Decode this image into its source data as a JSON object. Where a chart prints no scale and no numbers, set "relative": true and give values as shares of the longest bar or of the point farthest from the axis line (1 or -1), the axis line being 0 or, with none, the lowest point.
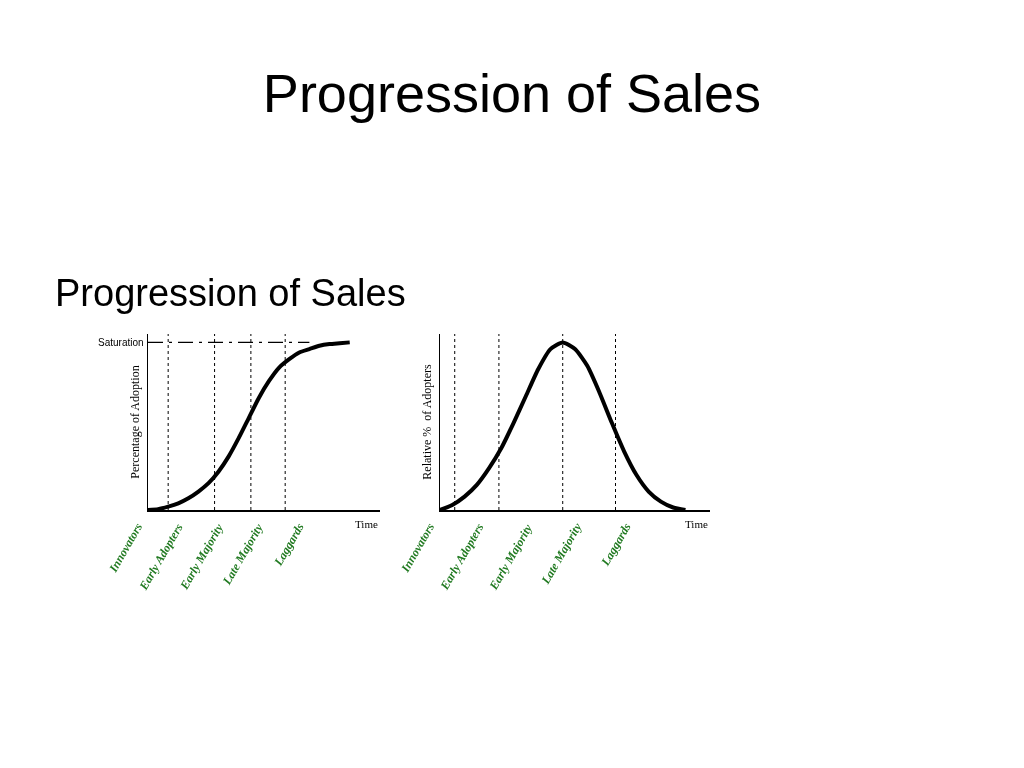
{
  "chart_data": [
    {
      "type": "line",
      "title": "Progression of Sales",
      "subtitle": "Progression of Sales",
      "ylabel": "Percentage of Adoption",
      "xlabel": "Time",
      "relative": true,
      "grid": false,
      "marker": "none",
      "line_style": "solid",
      "categories": [
        null,
        null,
        null,
        null,
        null,
        null,
        null,
        null,
        null,
        null,
        null,
        null,
        null,
        null,
        null,
        null,
        null,
        null,
        null,
        null,
        null,
        null,
        null,
        null
      ],
      "series": [
        {
          "color": "#000000",
          "values": [
            0,
            0.005,
            0.02,
            0.04,
            0.07,
            0.11,
            0.16,
            0.23,
            0.32,
            0.43,
            0.55,
            0.67,
            0.77,
            0.85,
            0.9,
            0.94,
            0.96,
            0.98,
            0.99,
            0.995,
            1,
            null,
            null,
            null
          ]
        }
      ],
      "ref_lines": [
        {
          "axis": "y",
          "value": 1,
          "label": "Saturation",
          "line_style": "dashed"
        }
      ],
      "annotations": [
        "Innovators",
        "Early Adopters",
        "Early Majority",
        "Late Majority",
        "Laggards"
      ]
    },
    {
      "type": "line",
      "ylabel": "Relative %  of Adopters",
      "xlabel": "Time",
      "relative": true,
      "grid": false,
      "marker": "none",
      "line_style": "solid",
      "categories": [
        null,
        null,
        null,
        null,
        null,
        null,
        null,
        null,
        null,
        null,
        null,
        null,
        null,
        null,
        null,
        null,
        null,
        null,
        null,
        null,
        null,
        null,
        null
      ],
      "series": [
        {
          "color": "#000000",
          "values": [
            0,
            0.03,
            0.08,
            0.15,
            0.25,
            0.37,
            0.52,
            0.68,
            0.84,
            0.96,
            1,
            0.96,
            0.86,
            0.7,
            0.52,
            0.35,
            0.21,
            0.11,
            0.05,
            0.015,
            0,
            null,
            null
          ]
        }
      ],
      "annotations": [
        "Innovators",
        "Early Adopters",
        "Early Majority",
        "Late Majority",
        "Laggards"
      ]
    }
  ]
}
